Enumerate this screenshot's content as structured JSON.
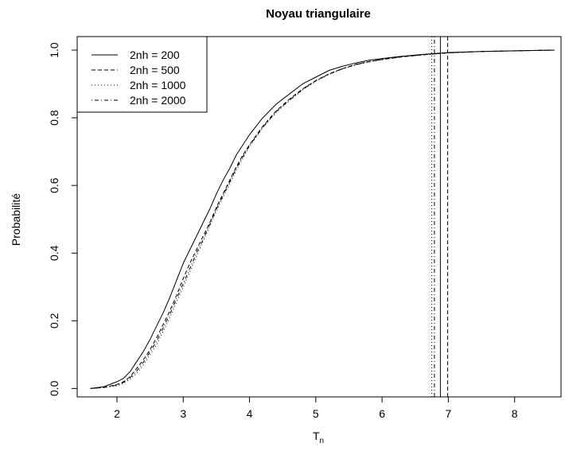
{
  "chart_data": {
    "type": "line",
    "title": "Noyau triangulaire",
    "xlabel": "T",
    "xlabel_sub": "n",
    "ylabel": "Probabilité",
    "xlim": [
      1.4,
      8.7
    ],
    "ylim": [
      -0.025,
      1.04
    ],
    "xticks": [
      "2",
      "3",
      "4",
      "5",
      "6",
      "7",
      "8"
    ],
    "yticks": [
      "0.0",
      "0.2",
      "0.4",
      "0.6",
      "0.8",
      "1.0"
    ],
    "grid": false,
    "legend_position": "top-left",
    "series": [
      {
        "name": "2nh = 200",
        "dash": "solid",
        "x": [
          1.6,
          1.8,
          2.0,
          2.1,
          2.2,
          2.3,
          2.4,
          2.5,
          2.6,
          2.7,
          2.8,
          2.9,
          3.0,
          3.1,
          3.2,
          3.3,
          3.4,
          3.5,
          3.6,
          3.7,
          3.8,
          3.9,
          4.0,
          4.2,
          4.4,
          4.6,
          4.8,
          5.0,
          5.2,
          5.4,
          5.6,
          5.8,
          6.0,
          6.3,
          6.6,
          7.0,
          7.5,
          8.0,
          8.6
        ],
        "y": [
          0.0,
          0.005,
          0.02,
          0.03,
          0.05,
          0.08,
          0.11,
          0.145,
          0.185,
          0.225,
          0.27,
          0.32,
          0.37,
          0.41,
          0.45,
          0.49,
          0.53,
          0.575,
          0.615,
          0.65,
          0.69,
          0.72,
          0.75,
          0.8,
          0.84,
          0.87,
          0.9,
          0.92,
          0.94,
          0.952,
          0.962,
          0.97,
          0.975,
          0.982,
          0.987,
          0.993,
          0.996,
          0.998,
          1.0
        ]
      },
      {
        "name": "2nh = 500",
        "dash": "dashed",
        "x": [
          1.6,
          1.8,
          2.0,
          2.1,
          2.2,
          2.3,
          2.4,
          2.5,
          2.6,
          2.7,
          2.8,
          2.9,
          3.0,
          3.1,
          3.2,
          3.3,
          3.4,
          3.5,
          3.6,
          3.7,
          3.8,
          3.9,
          4.0,
          4.2,
          4.4,
          4.6,
          4.8,
          5.0,
          5.2,
          5.4,
          5.6,
          5.8,
          6.0,
          6.3,
          6.6,
          7.0,
          7.5,
          8.0,
          8.6
        ],
        "y": [
          0.0,
          0.003,
          0.012,
          0.02,
          0.035,
          0.06,
          0.085,
          0.115,
          0.15,
          0.19,
          0.23,
          0.275,
          0.325,
          0.37,
          0.41,
          0.45,
          0.49,
          0.535,
          0.575,
          0.615,
          0.655,
          0.69,
          0.72,
          0.775,
          0.82,
          0.855,
          0.885,
          0.91,
          0.93,
          0.945,
          0.958,
          0.966,
          0.972,
          0.98,
          0.986,
          0.992,
          0.996,
          0.998,
          1.0
        ]
      },
      {
        "name": "2nh = 1000",
        "dash": "dotted",
        "x": [
          1.6,
          1.8,
          2.0,
          2.1,
          2.2,
          2.3,
          2.4,
          2.5,
          2.6,
          2.7,
          2.8,
          2.9,
          3.0,
          3.1,
          3.2,
          3.3,
          3.4,
          3.5,
          3.6,
          3.7,
          3.8,
          3.9,
          4.0,
          4.2,
          4.4,
          4.6,
          4.8,
          5.0,
          5.2,
          5.4,
          5.6,
          5.8,
          6.0,
          6.3,
          6.6,
          7.0,
          7.5,
          8.0,
          8.6
        ],
        "y": [
          0.0,
          0.002,
          0.008,
          0.015,
          0.028,
          0.045,
          0.07,
          0.1,
          0.13,
          0.17,
          0.21,
          0.255,
          0.3,
          0.345,
          0.39,
          0.435,
          0.48,
          0.525,
          0.565,
          0.605,
          0.645,
          0.68,
          0.715,
          0.77,
          0.815,
          0.85,
          0.882,
          0.908,
          0.928,
          0.944,
          0.956,
          0.965,
          0.972,
          0.98,
          0.986,
          0.992,
          0.996,
          0.998,
          1.0
        ]
      },
      {
        "name": "2nh = 2000",
        "dash": "dotdash",
        "x": [
          1.6,
          1.8,
          2.0,
          2.1,
          2.2,
          2.3,
          2.4,
          2.5,
          2.6,
          2.7,
          2.8,
          2.9,
          3.0,
          3.1,
          3.2,
          3.3,
          3.4,
          3.5,
          3.6,
          3.7,
          3.8,
          3.9,
          4.0,
          4.2,
          4.4,
          4.6,
          4.8,
          5.0,
          5.2,
          5.4,
          5.6,
          5.8,
          6.0,
          6.3,
          6.6,
          7.0,
          7.5,
          8.0,
          8.6
        ],
        "y": [
          0.0,
          0.003,
          0.01,
          0.018,
          0.032,
          0.052,
          0.078,
          0.108,
          0.14,
          0.18,
          0.22,
          0.265,
          0.31,
          0.355,
          0.4,
          0.44,
          0.485,
          0.53,
          0.57,
          0.61,
          0.65,
          0.685,
          0.718,
          0.772,
          0.818,
          0.852,
          0.884,
          0.909,
          0.929,
          0.945,
          0.957,
          0.966,
          0.973,
          0.981,
          0.986,
          0.992,
          0.996,
          0.998,
          1.0
        ]
      }
    ],
    "vlines": [
      {
        "x": 6.88,
        "dash": "solid"
      },
      {
        "x": 6.99,
        "dash": "dashed"
      },
      {
        "x": 6.75,
        "dash": "dotted"
      },
      {
        "x": 6.79,
        "dash": "dotdash"
      }
    ]
  }
}
